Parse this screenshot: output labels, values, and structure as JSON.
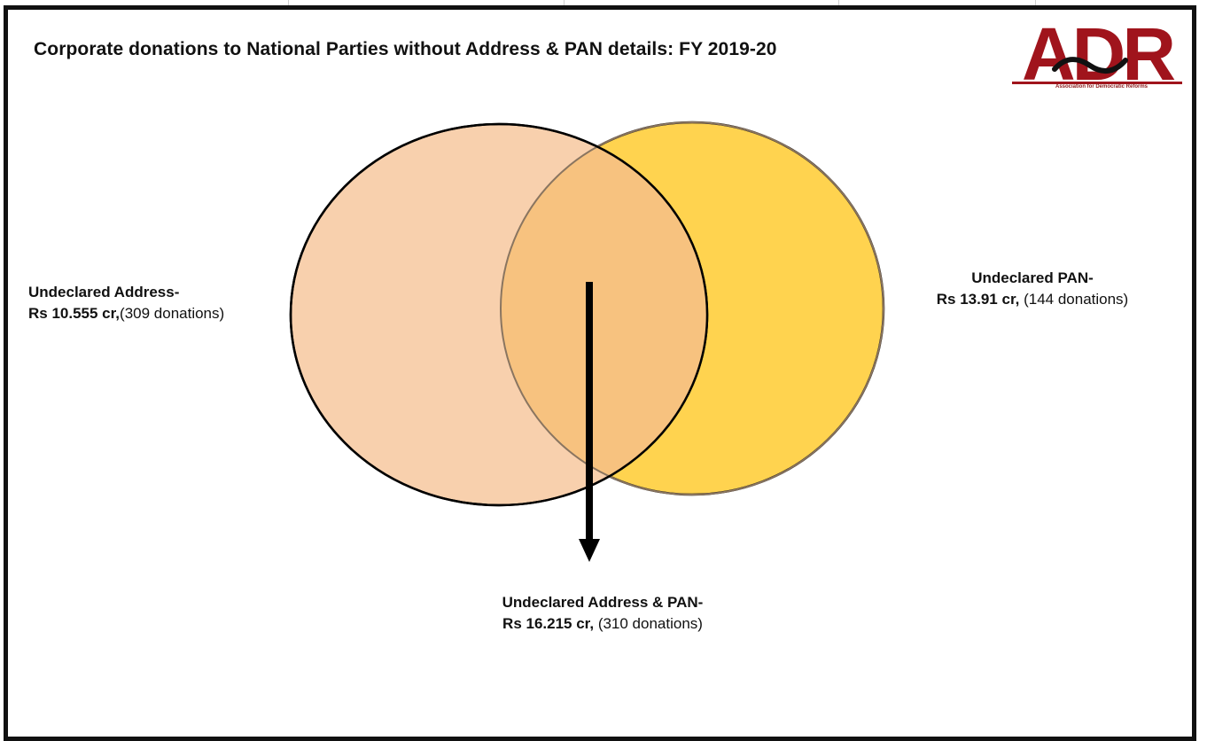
{
  "title": "Corporate donations to National Parties without Address & PAN details: FY 2019-20",
  "logo": {
    "wordmark": "ADR",
    "tagline": "Association for Democratic Reforms",
    "color": "#a0141c"
  },
  "sets": {
    "address": {
      "heading": "Undeclared Address-",
      "amount": "Rs 10.555 cr,",
      "count": "(309 donations)",
      "color": "#f8d0ad"
    },
    "pan": {
      "heading": "Undeclared PAN-",
      "amount": "Rs 13.91 cr,",
      "count": "(144 donations)",
      "color": "#ffd34f"
    },
    "both": {
      "heading": "Undeclared Address & PAN-",
      "amount": "Rs 16.215 cr,",
      "count": "(310 donations)",
      "color": "#f7c27f"
    }
  }
}
